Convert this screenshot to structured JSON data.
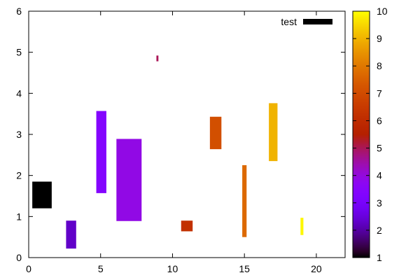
{
  "chart_data": {
    "type": "rectangles",
    "xlim": [
      0,
      22
    ],
    "ylim": [
      0,
      6
    ],
    "x_ticks": [
      "0",
      "5",
      "10",
      "15",
      "20"
    ],
    "y_ticks": [
      "0",
      "1",
      "2",
      "3",
      "4",
      "5",
      "6"
    ],
    "grid": false,
    "colorbar": {
      "range": [
        1,
        10
      ],
      "ticks": [
        "1",
        "2",
        "3",
        "4",
        "5",
        "6",
        "7",
        "8",
        "9",
        "10"
      ],
      "palette": "black-purple-red-orange-yellow"
    },
    "legend": {
      "label": "test",
      "placement": "top-right",
      "swatch_color": "#000000"
    },
    "rects": [
      {
        "x0": 0.25,
        "x1": 1.6,
        "y0": 1.2,
        "y1": 1.85,
        "value": 1.0
      },
      {
        "x0": 2.6,
        "x1": 3.3,
        "y0": 0.22,
        "y1": 0.9,
        "value": 2.3
      },
      {
        "x0": 4.7,
        "x1": 5.4,
        "y0": 1.57,
        "y1": 3.57,
        "value": 3.4
      },
      {
        "x0": 6.1,
        "x1": 7.85,
        "y0": 0.89,
        "y1": 2.89,
        "value": 3.9
      },
      {
        "x0": 8.88,
        "x1": 9.02,
        "y0": 4.78,
        "y1": 4.92,
        "value": 5.0
      },
      {
        "x0": 10.6,
        "x1": 11.4,
        "y0": 0.64,
        "y1": 0.9,
        "value": 6.2
      },
      {
        "x0": 12.6,
        "x1": 13.4,
        "y0": 2.64,
        "y1": 3.43,
        "value": 7.1
      },
      {
        "x0": 14.85,
        "x1": 15.15,
        "y0": 0.5,
        "y1": 2.25,
        "value": 7.7
      },
      {
        "x0": 16.7,
        "x1": 17.3,
        "y0": 2.35,
        "y1": 3.76,
        "value": 9.0
      },
      {
        "x0": 18.9,
        "x1": 19.1,
        "y0": 0.55,
        "y1": 0.97,
        "value": 9.9
      }
    ]
  }
}
